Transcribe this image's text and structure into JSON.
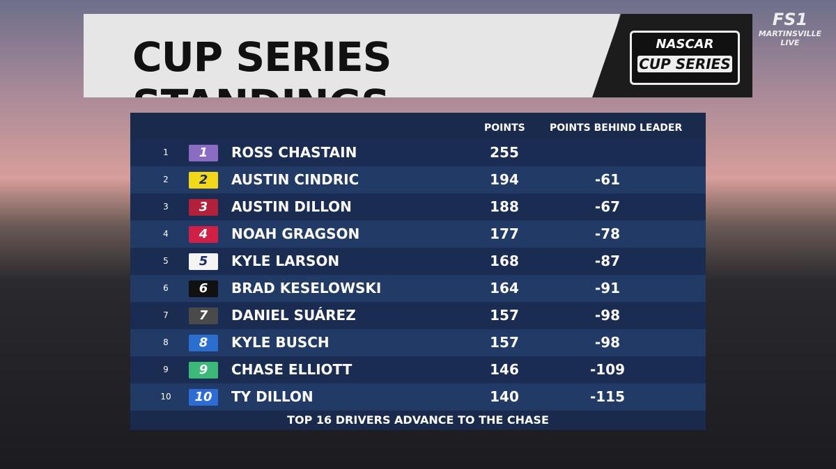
{
  "header": {
    "title": "CUP SERIES STANDINGS",
    "logo_top": "NASCAR",
    "logo_bottom": "CUP SERIES"
  },
  "network": {
    "name": "FS1",
    "line1": "MARTINSVILLE",
    "line2": "LIVE"
  },
  "table": {
    "columns": [
      "POINTS",
      "POINTS BEHIND LEADER"
    ],
    "rows": [
      {
        "pos": 1,
        "car": 1,
        "driver": "ROSS CHASTAIN",
        "points": 255,
        "badge_color": "#8a6cc4"
      },
      {
        "pos": 2,
        "car": 2,
        "driver": "AUSTIN CINDRIC",
        "points": 194,
        "behind": -61,
        "badge_color": "#f2d817"
      },
      {
        "pos": 3,
        "car": 3,
        "driver": "AUSTIN DILLON",
        "points": 188,
        "behind": -67,
        "badge_color": "#b3203a"
      },
      {
        "pos": 4,
        "car": 4,
        "driver": "NOAH GRAGSON",
        "points": 177,
        "behind": -78,
        "badge_color": "#d21f45"
      },
      {
        "pos": 5,
        "car": 5,
        "driver": "KYLE LARSON",
        "points": 168,
        "behind": -87,
        "badge_color": "#f4f4f4"
      },
      {
        "pos": 6,
        "car": 6,
        "driver": "BRAD KESELOWSKI",
        "points": 164,
        "behind": -91,
        "badge_color": "#111111"
      },
      {
        "pos": 7,
        "car": 7,
        "driver": "DANIEL SUÁREZ",
        "points": 157,
        "behind": -98,
        "badge_color": "#4a4a4a"
      },
      {
        "pos": 8,
        "car": 8,
        "driver": "KYLE BUSCH",
        "points": 157,
        "behind": -98,
        "badge_color": "#2a6fd0"
      },
      {
        "pos": 9,
        "car": 9,
        "driver": "CHASE ELLIOTT",
        "points": 146,
        "behind": -109,
        "badge_color": "#3cb878"
      },
      {
        "pos": 10,
        "car": 10,
        "driver": "TY DILLON",
        "points": 140,
        "behind": -115,
        "badge_color": "#2d6bd6"
      }
    ],
    "footer": "TOP 16 DRIVERS ADVANCE TO THE CHASE"
  }
}
